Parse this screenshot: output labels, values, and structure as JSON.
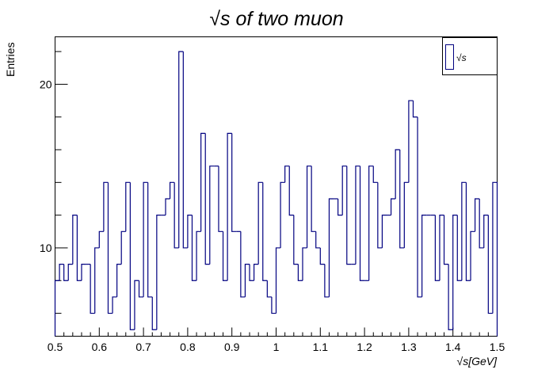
{
  "chart_data": {
    "type": "histogram",
    "title": "√s   of   two   muon",
    "xlabel": "√s[GeV]",
    "ylabel": "Entries",
    "xlim": [
      0.5,
      1.5
    ],
    "ylim": [
      4.6,
      22.9
    ],
    "bins": 100,
    "bin_width": 0.01,
    "x_ticks": [
      "0.5",
      "0.6",
      "0.7",
      "0.8",
      "0.9",
      "1",
      "1.1",
      "1.2",
      "1.3",
      "1.4",
      "1.5"
    ],
    "y_ticks": [
      "10",
      "20"
    ],
    "legend": {
      "position": "top-right",
      "entries": [
        {
          "label": "√s",
          "color": "#000080"
        }
      ]
    },
    "grid": false,
    "series": [
      {
        "name": "√s",
        "color": "#000080",
        "values": [
          8,
          9,
          8,
          9,
          12,
          8,
          9,
          9,
          6,
          10,
          11,
          14,
          6,
          7,
          9,
          11,
          14,
          5,
          8,
          7,
          14,
          7,
          5,
          12,
          12,
          13,
          14,
          10,
          22,
          10,
          12,
          8,
          11,
          17,
          9,
          15,
          15,
          11,
          8,
          17,
          11,
          11,
          7,
          9,
          8,
          9,
          14,
          8,
          7,
          6,
          10,
          14,
          15,
          12,
          9,
          8,
          10,
          15,
          11,
          10,
          9,
          7,
          13,
          13,
          12,
          15,
          9,
          9,
          15,
          8,
          8,
          15,
          14,
          10,
          12,
          12,
          13,
          16,
          10,
          14,
          19,
          18,
          7,
          12,
          12,
          12,
          8,
          12,
          9,
          5,
          12,
          8,
          14,
          8,
          11,
          13,
          10,
          12,
          6,
          14
        ]
      }
    ]
  }
}
